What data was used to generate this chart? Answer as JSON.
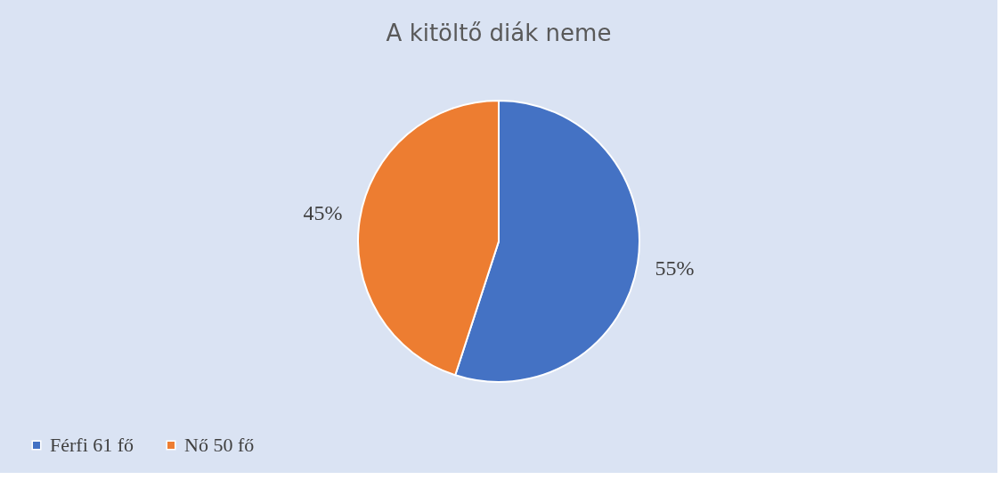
{
  "chart_data": {
    "type": "pie",
    "title": "A kitöltő diák neme",
    "categories": [
      "Férfi 61 fő",
      "Nő 50 fő"
    ],
    "values": [
      55,
      45
    ],
    "colors": [
      "#4472c4",
      "#ed7d31"
    ],
    "value_labels": [
      "55%",
      "45%"
    ],
    "legend": "bottom"
  }
}
